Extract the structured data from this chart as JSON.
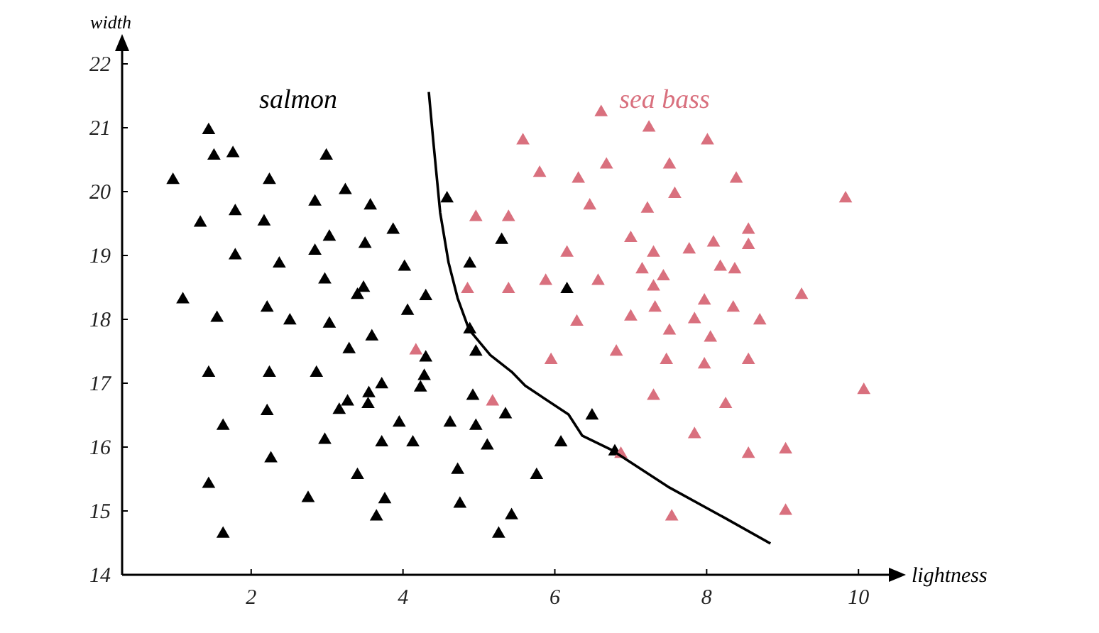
{
  "chart_data": {
    "type": "scatter",
    "xlabel": "lightness",
    "ylabel": "width",
    "xlim": [
      0.3,
      10.4
    ],
    "ylim": [
      14,
      22.2
    ],
    "xticks": [
      2,
      4,
      6,
      8,
      10
    ],
    "yticks": [
      14,
      15,
      16,
      17,
      18,
      19,
      20,
      21,
      22
    ],
    "marker": "triangle",
    "grid": false,
    "series": [
      {
        "name": "salmon",
        "color": "#000000",
        "x": [
          1.44,
          1.51,
          1.76,
          2.99,
          0.97,
          2.24,
          3.24,
          2.84,
          3.57,
          4.58,
          1.79,
          1.33,
          2.17,
          3.87,
          3.03,
          3.5,
          2.84,
          1.79,
          2.37,
          4.02,
          2.97,
          3.48,
          3.4,
          4.3,
          1.1,
          1.55,
          2.21,
          2.51,
          3.03,
          4.06,
          3.59,
          3.29,
          4.3,
          1.44,
          2.24,
          2.86,
          3.72,
          4.28,
          4.23,
          3.55,
          3.27,
          3.54,
          3.16,
          2.21,
          1.63,
          3.95,
          4.62,
          2.97,
          3.72,
          4.13,
          2.26,
          3.4,
          1.44,
          2.75,
          3.76,
          3.65,
          1.63,
          5.3,
          4.88,
          6.16,
          4.88,
          4.96,
          4.92,
          5.35,
          4.96,
          5.11,
          6.08,
          6.49,
          6.79,
          4.72,
          5.76,
          4.75,
          5.43,
          5.26
        ],
        "values": [
          20.96,
          20.56,
          20.6,
          20.56,
          20.18,
          20.18,
          20.02,
          19.84,
          19.78,
          19.89,
          19.69,
          19.51,
          19.53,
          19.4,
          19.29,
          19.18,
          19.07,
          19.0,
          18.87,
          18.82,
          18.62,
          18.49,
          18.38,
          18.36,
          18.31,
          18.02,
          18.18,
          17.98,
          17.93,
          18.13,
          17.73,
          17.53,
          17.4,
          17.16,
          17.16,
          17.16,
          16.98,
          17.11,
          16.93,
          16.84,
          16.71,
          16.67,
          16.58,
          16.56,
          16.33,
          16.38,
          16.38,
          16.11,
          16.07,
          16.07,
          15.82,
          15.56,
          15.42,
          15.2,
          15.18,
          14.91,
          14.64,
          19.24,
          18.87,
          18.47,
          17.84,
          17.49,
          16.8,
          16.51,
          16.33,
          16.02,
          16.07,
          16.49,
          15.93,
          15.64,
          15.56,
          15.11,
          14.93,
          14.64
        ]
      },
      {
        "name": "sea bass",
        "color": "#d9707e",
        "x": [
          6.61,
          7.24,
          5.58,
          5.8,
          6.31,
          6.68,
          7.51,
          7.58,
          6.46,
          7.22,
          4.96,
          5.39,
          7.0,
          6.16,
          7.3,
          7.15,
          7.43,
          7.3,
          4.85,
          5.39,
          5.88,
          6.57,
          7.32,
          7.0,
          6.29,
          7.51,
          5.95,
          6.81,
          7.47,
          7.3,
          5.18,
          6.87,
          7.54,
          4.17,
          8.01,
          8.39,
          9.83,
          8.55,
          8.09,
          8.55,
          7.77,
          8.18,
          8.37,
          7.97,
          9.25,
          8.35,
          7.84,
          8.7,
          8.05,
          7.97,
          8.55,
          8.25,
          10.07,
          7.84,
          8.55,
          9.04,
          9.04
        ],
        "values": [
          21.24,
          21.0,
          20.8,
          20.29,
          20.2,
          20.42,
          20.42,
          19.96,
          19.78,
          19.73,
          19.6,
          19.6,
          19.27,
          19.04,
          19.04,
          18.78,
          18.67,
          18.51,
          18.47,
          18.47,
          18.6,
          18.6,
          18.18,
          18.04,
          17.96,
          17.82,
          17.36,
          17.49,
          17.36,
          16.8,
          16.71,
          15.89,
          14.91,
          17.51,
          20.8,
          20.2,
          19.89,
          19.4,
          19.2,
          19.16,
          19.09,
          18.82,
          18.78,
          18.29,
          18.38,
          18.18,
          18.0,
          17.98,
          17.71,
          17.29,
          17.36,
          16.67,
          16.89,
          16.2,
          15.89,
          15.96,
          15.0
        ]
      },
      {
        "type": "line",
        "marker": "none",
        "color": "#000000",
        "x": [
          4.34,
          4.4,
          4.49,
          4.6,
          4.72,
          4.87,
          5.15,
          5.43,
          5.61,
          6.18,
          6.36,
          6.74,
          7.49,
          8.24,
          8.84
        ],
        "values": [
          21.56,
          20.78,
          19.67,
          18.89,
          18.33,
          17.84,
          17.44,
          17.18,
          16.96,
          16.51,
          16.18,
          15.96,
          15.38,
          14.89,
          14.49
        ]
      }
    ]
  }
}
